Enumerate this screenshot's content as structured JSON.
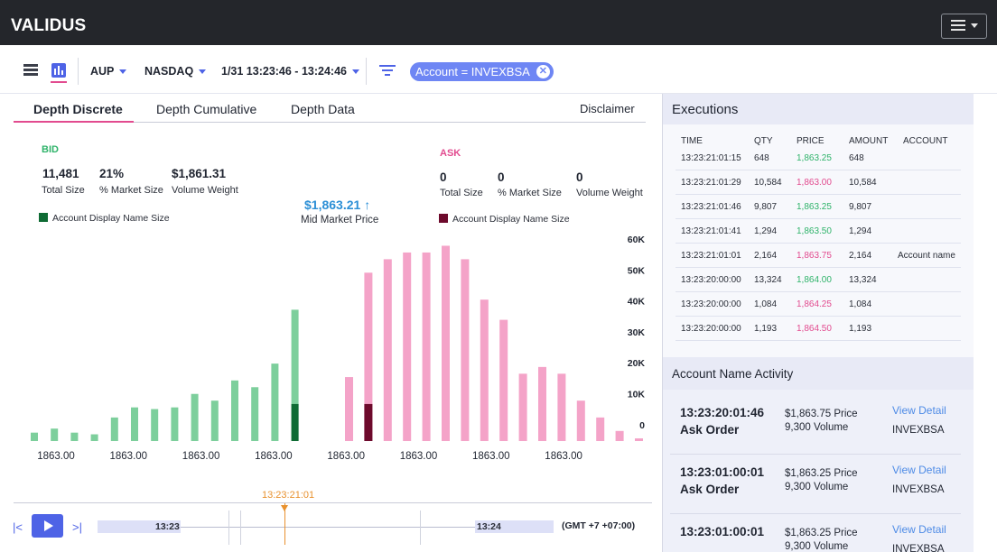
{
  "app": {
    "title": "VALIDUS"
  },
  "toolbar": {
    "currency": "AUP",
    "venue": "NASDAQ",
    "time_range": "1/31 13:23:46 - 13:24:46",
    "filter_chip": "Account = INVEXBSA"
  },
  "tabs": [
    {
      "label": "Depth Discrete",
      "active": true
    },
    {
      "label": "Depth Cumulative",
      "active": false
    },
    {
      "label": "Depth Data",
      "active": false
    }
  ],
  "disclaimer": "Disclaimer",
  "bid": {
    "label": "BID",
    "total_size": "11,481",
    "total_size_label": "Total Size",
    "market_size": "21%",
    "market_size_label": "% Market Size",
    "volume_weight": "$1,861.31",
    "volume_weight_label": "Volume Weight",
    "legend": "Account Display Name Size",
    "color": "#7dcf9c",
    "highlight_color": "#0f6b34"
  },
  "ask": {
    "label": "ASK",
    "total_size": "0",
    "total_size_label": "Total Size",
    "market_size": "0",
    "market_size_label": "% Market Size",
    "volume_weight": "0",
    "volume_weight_label": "Volume Weight",
    "legend": "Account Display Name Size",
    "color": "#f4a3c8",
    "highlight_color": "#6d0a2c"
  },
  "mid": {
    "price": "$1,863.21",
    "label": "Mid Market Price"
  },
  "chart_data": {
    "type": "bar",
    "y_ticks": [
      "60K",
      "50K",
      "40K",
      "30K",
      "20K",
      "10K",
      "0"
    ],
    "ylim": [
      0,
      60000
    ],
    "x_tick_labels": [
      "1863.00",
      "1863.00",
      "1863.00",
      "1863.00",
      "1863.00",
      "1863.00",
      "1863.00",
      "1863.00"
    ],
    "series": [
      {
        "name": "BID",
        "values": [
          2500,
          3700,
          2500,
          2000,
          7000,
          10000,
          9500,
          10000,
          14000,
          12000,
          18000,
          16000,
          23000,
          39000
        ],
        "highlight": [
          0,
          0,
          0,
          0,
          0,
          0,
          0,
          0,
          0,
          0,
          0,
          0,
          0,
          11000
        ]
      },
      {
        "name": "ASK",
        "values": [
          19000,
          50000,
          54000,
          56000,
          56000,
          58000,
          54000,
          42000,
          36000,
          20000,
          22000,
          20000,
          12000,
          7000,
          3000,
          800
        ],
        "highlight": [
          0,
          11000,
          0,
          0,
          0,
          0,
          0,
          0,
          0,
          0,
          0,
          0,
          0,
          0,
          0,
          0
        ]
      }
    ]
  },
  "timeline": {
    "current_time": "13:23:21:01",
    "start_label": "13:23",
    "end_label": "13:24",
    "timezone": "(GMT +7 +07:00)"
  },
  "executions": {
    "title": "Executions",
    "columns": [
      "TIME",
      "QTY",
      "PRICE",
      "AMOUNT",
      "ACCOUNT"
    ],
    "rows": [
      {
        "time": "13:23:21:01:15",
        "qty": "648",
        "price": "1,863.25",
        "side": "buy",
        "amount": "648",
        "account": ""
      },
      {
        "time": "13:23:21:01:29",
        "qty": "10,584",
        "price": "1,863.00",
        "side": "sell",
        "amount": "10,584",
        "account": ""
      },
      {
        "time": "13:23:21:01:46",
        "qty": "9,807",
        "price": "1,863.25",
        "side": "buy",
        "amount": "9,807",
        "account": ""
      },
      {
        "time": "13:23:21:01:41",
        "qty": "1,294",
        "price": "1,863.50",
        "side": "buy",
        "amount": "1,294",
        "account": ""
      },
      {
        "time": "13:23:21:01:01",
        "qty": "2,164",
        "price": "1,863.75",
        "side": "sell",
        "amount": "2,164",
        "account": "Account name"
      },
      {
        "time": "13:23:20:00:00",
        "qty": "13,324",
        "price": "1,864.00",
        "side": "buy",
        "amount": "13,324",
        "account": ""
      },
      {
        "time": "13:23:20:00:00",
        "qty": "1,084",
        "price": "1,864.25",
        "side": "sell",
        "amount": "1,084",
        "account": ""
      },
      {
        "time": "13:23:20:00:00",
        "qty": "1,193",
        "price": "1,864.50",
        "side": "sell",
        "amount": "1,193",
        "account": ""
      }
    ],
    "buy_color": "#2fb36a",
    "sell_color": "#e24b8f"
  },
  "activity": {
    "title": "Account Name Activity",
    "items": [
      {
        "time": "13:23:20:01:46",
        "type": "Ask Order",
        "price": "$1,863.75 Price",
        "volume": "9,300 Volume",
        "link": "View Detail",
        "account": "INVEXBSA"
      },
      {
        "time": "13:23:01:00:01",
        "type": "Ask Order",
        "price": "$1,863.25 Price",
        "volume": "9,300 Volume",
        "link": "View Detail",
        "account": "INVEXBSA"
      },
      {
        "time": "13:23:01:00:01",
        "type": "",
        "price": "$1,863.25 Price",
        "volume": "9,300 Volume",
        "link": "View Detail",
        "account": "INVEXBSA"
      }
    ]
  }
}
